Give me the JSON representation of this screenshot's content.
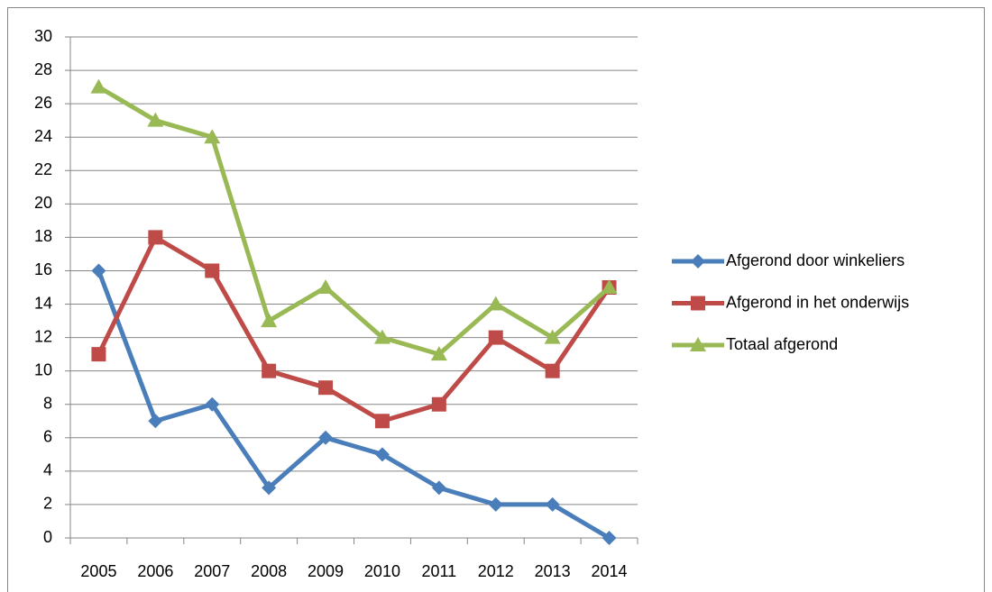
{
  "chart_data": {
    "type": "line",
    "categories": [
      "2005",
      "2006",
      "2007",
      "2008",
      "2009",
      "2010",
      "2011",
      "2012",
      "2013",
      "2014"
    ],
    "series": [
      {
        "name": "Afgerond door winkeliers",
        "color": "#4a7ebb",
        "marker": "diamond",
        "values": [
          16,
          7,
          8,
          3,
          6,
          5,
          3,
          2,
          2,
          0
        ]
      },
      {
        "name": "Afgerond in het onderwijs",
        "color": "#be4b48",
        "marker": "square",
        "values": [
          11,
          18,
          16,
          10,
          9,
          7,
          8,
          12,
          10,
          15
        ]
      },
      {
        "name": "Totaal afgerond",
        "color": "#98b954",
        "marker": "triangle",
        "values": [
          27,
          25,
          24,
          13,
          15,
          12,
          11,
          14,
          12,
          15
        ]
      }
    ],
    "ylim": [
      0,
      30
    ],
    "yticks": [
      0,
      2,
      4,
      6,
      8,
      10,
      12,
      14,
      16,
      18,
      20,
      22,
      24,
      26,
      28,
      30
    ],
    "grid": true,
    "legend": "right"
  }
}
